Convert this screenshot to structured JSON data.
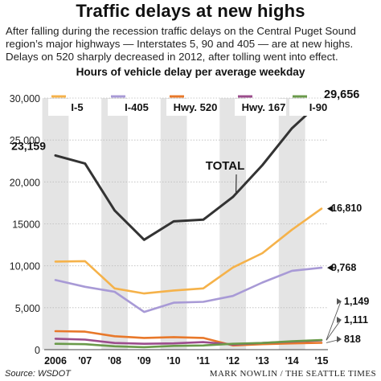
{
  "title": "Traffic delays at new highs",
  "intro": "After falling during the recession traffic delays on the Central Puget Sound region’s major highways — Interstates 5, 90 and 405 — are at new highs. Delays on 520 sharply decreased in 2012, after tolling went into effect.",
  "source": "Source: WSDOT",
  "credit": "MARK NOWLIN / THE SEATTLE TIMES",
  "colors": {
    "total": "#333333",
    "i5": "#f5b24a",
    "i405": "#a89ad6",
    "hwy520": "#e8782a",
    "hwy167": "#9b4d8c",
    "i90": "#6a9a4a",
    "column_band": "#e4e4e4"
  },
  "chart_data": {
    "type": "line",
    "title": "Hours of vehicle delay per average weekday",
    "xlabel": "",
    "ylabel": "",
    "ylim": [
      0,
      30000
    ],
    "yticks": [
      0,
      5000,
      10000,
      15000,
      20000,
      25000,
      30000
    ],
    "ytick_labels": [
      "0",
      "5,000",
      "10,000",
      "15000",
      "20,000",
      "25,000",
      "30,000"
    ],
    "categories": [
      "2006",
      "'07",
      "'08",
      "'09",
      "'10",
      "'11",
      "'12",
      "'13",
      "'14",
      "'15"
    ],
    "shaded_columns": [
      "2006",
      "'08",
      "'10",
      "'12",
      "'14"
    ],
    "grid": true,
    "legend_position": "top",
    "series": [
      {
        "name": "I-5",
        "color": "#f5b24a",
        "values": [
          10500,
          10550,
          7300,
          6700,
          7050,
          7300,
          9800,
          11500,
          14300,
          16810
        ]
      },
      {
        "name": "I-405",
        "color": "#a89ad6",
        "values": [
          8300,
          7500,
          6900,
          4500,
          5600,
          5700,
          6400,
          8000,
          9400,
          9768
        ]
      },
      {
        "name": "Hwy. 520",
        "color": "#e8782a",
        "values": [
          2200,
          2150,
          1600,
          1400,
          1500,
          1400,
          500,
          650,
          750,
          818
        ]
      },
      {
        "name": "Hwy. 167",
        "color": "#9b4d8c",
        "values": [
          1300,
          1200,
          800,
          700,
          750,
          900,
          600,
          800,
          950,
          1111
        ]
      },
      {
        "name": "I-90",
        "color": "#6a9a4a",
        "values": [
          700,
          650,
          400,
          300,
          450,
          500,
          700,
          800,
          1000,
          1149
        ]
      },
      {
        "name": "TOTAL",
        "color": "#333333",
        "values": [
          23159,
          22200,
          16600,
          13100,
          15300,
          15500,
          18200,
          22000,
          26400,
          29656
        ]
      }
    ],
    "annotations": [
      {
        "series": "TOTAL",
        "category": "2006",
        "text": "23,159"
      },
      {
        "series": "TOTAL",
        "category": "'15",
        "text": "29,656"
      },
      {
        "series": "I-5",
        "category": "'15",
        "text": "16,810"
      },
      {
        "series": "I-405",
        "category": "'15",
        "text": "9,768"
      },
      {
        "series": "I-90",
        "category": "'15",
        "text": "1,149"
      },
      {
        "series": "Hwy. 167",
        "category": "'15",
        "text": "1,111"
      },
      {
        "series": "Hwy. 520",
        "category": "'15",
        "text": "818"
      }
    ],
    "total_label": "TOTAL"
  }
}
